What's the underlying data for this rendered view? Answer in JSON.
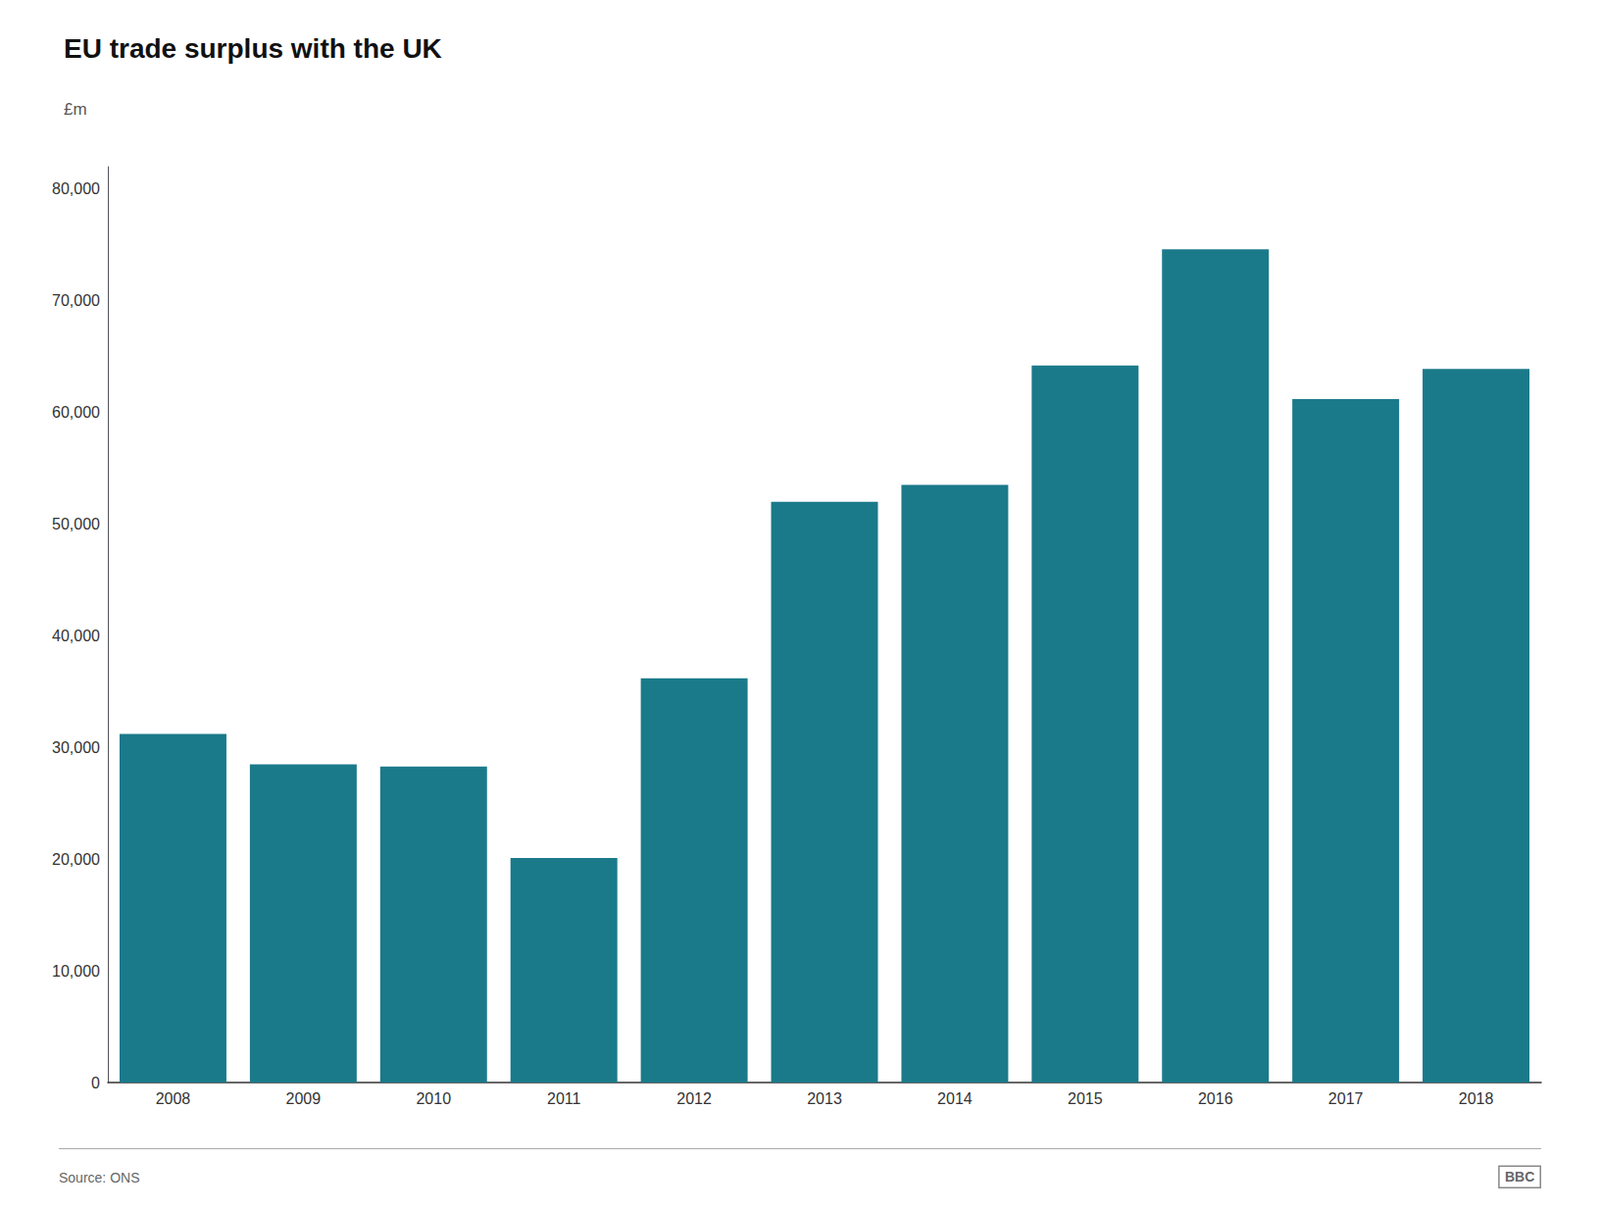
{
  "chart_data": {
    "type": "bar",
    "title": "EU trade surplus with the UK",
    "subtitle": "£m",
    "annotations": [
      "Source: ONS",
      "BBC"
    ],
    "categories": [
      "2008",
      "2009",
      "2010",
      "2011",
      "2012",
      "2013",
      "2014",
      "2015",
      "2016",
      "2017",
      "2018"
    ],
    "values": [
      31200,
      28500,
      28300,
      20100,
      36200,
      52000,
      53500,
      64200,
      74600,
      61200,
      63900
    ],
    "color": "#1a7a8a",
    "ylim": [
      0,
      82000
    ],
    "yticks": [
      0,
      {
        "value": 10000,
        "label": "10,000"
      },
      {
        "value": 20000,
        "label": "20,000"
      },
      {
        "value": 30000,
        "label": "30,000"
      },
      {
        "value": 40000,
        "label": "40,000"
      },
      {
        "value": 50000,
        "label": "50,000"
      },
      {
        "value": 60000,
        "label": "60,000"
      },
      {
        "value": 70000,
        "label": "70,000"
      },
      {
        "value": 80000,
        "label": "80,000"
      }
    ],
    "grid": false
  }
}
